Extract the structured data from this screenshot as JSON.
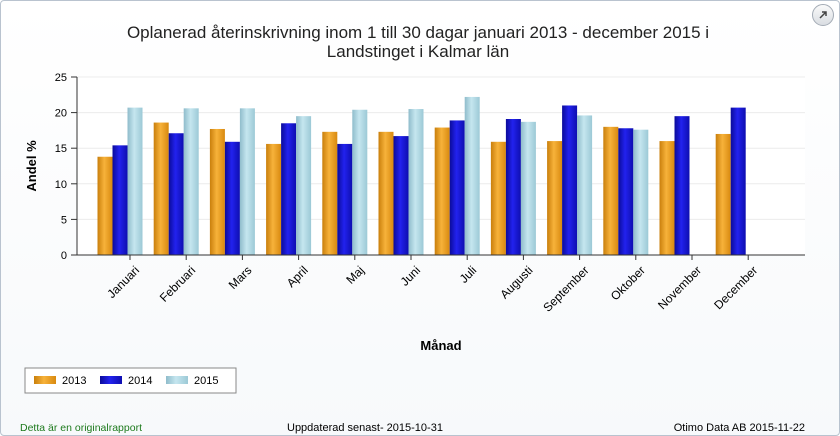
{
  "footer": {
    "original_note": "Detta är en originalrapport",
    "updated": "Uppdaterad senast- 2015-10-31",
    "source": "Otimo Data AB 2015-11-22"
  },
  "icons": {
    "maximize": "maximize-arrow-icon"
  },
  "colors": {
    "s2013": "#f5a623",
    "s2014": "#1a1adb",
    "s2015": "#b0d8e4",
    "plot_bg": "#ffffff",
    "grid": "#ececec"
  },
  "chart_data": {
    "type": "bar",
    "title": "Oplanerad återinskrivning inom 1 till 30 dagar januari 2013 - december 2015 i Landstinget i Kalmar län",
    "title_lines": [
      "Oplanerad återinskrivning inom 1 till 30 dagar januari 2013 - december 2015 i",
      "Landstinget i Kalmar län"
    ],
    "xlabel": "Månad",
    "ylabel": "Andel %",
    "ylim": [
      0,
      25
    ],
    "yticks": [
      0,
      5,
      10,
      15,
      20,
      25
    ],
    "grid": true,
    "legend_position": "bottom-left",
    "categories": [
      "Januari",
      "Februari",
      "Mars",
      "April",
      "Maj",
      "Juni",
      "Juli",
      "Augusti",
      "September",
      "Oktober",
      "November",
      "December"
    ],
    "series": [
      {
        "name": "2013",
        "values": [
          13.8,
          18.6,
          17.7,
          15.6,
          17.3,
          17.3,
          17.9,
          15.9,
          16.0,
          18.0,
          16.0,
          17.0
        ]
      },
      {
        "name": "2014",
        "values": [
          15.4,
          17.1,
          15.9,
          18.5,
          15.6,
          16.7,
          18.9,
          19.1,
          21.0,
          17.8,
          19.5,
          20.7
        ]
      },
      {
        "name": "2015",
        "values": [
          20.7,
          20.6,
          20.6,
          19.5,
          20.4,
          20.5,
          22.2,
          18.7,
          19.6,
          17.6,
          null,
          null
        ]
      }
    ]
  }
}
